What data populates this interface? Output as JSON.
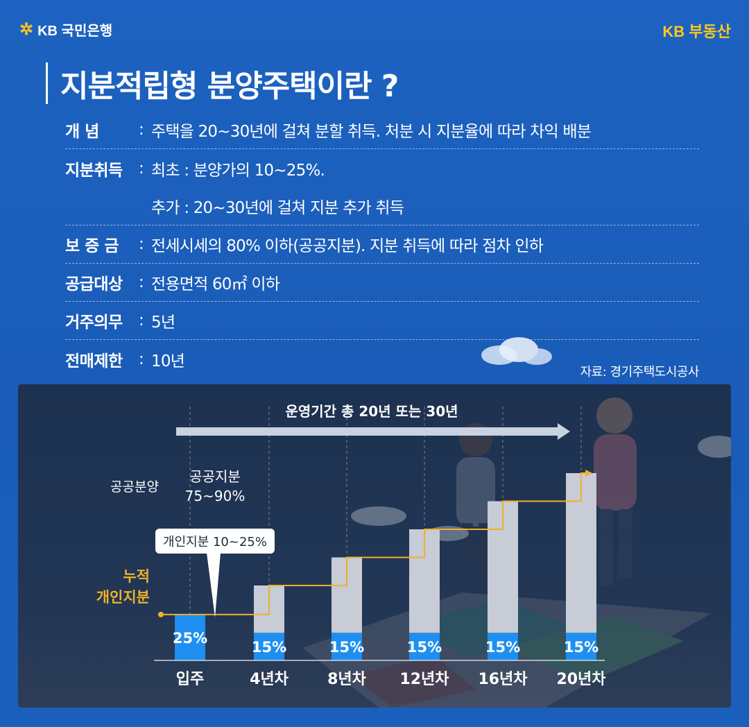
{
  "header": {
    "bank_logo": "KB 국민은행",
    "brand": "KB 부동산"
  },
  "title": "지분적립형 분양주택이란 ?",
  "info_rows": [
    {
      "label": "개      념",
      "value": "주택을 20~30년에 걸쳐 분할 취득. 처분 시 지분율에 따라 차익 배분"
    },
    {
      "label": "지분취득",
      "value": "최초 : 분양가의 10~25%."
    },
    {
      "label": "",
      "value": "추가 : 20~30년에 걸쳐 지분 추가 취득"
    },
    {
      "label": "보 증 금",
      "value": "전세시세의 80% 이하(공공지분). 지분 취득에 따라 점차 인하"
    },
    {
      "label": "공급대상",
      "value": "전용면적 60㎡ 이하"
    },
    {
      "label": "거주의무",
      "value": "5년"
    },
    {
      "label": "전매제한",
      "value": "10년"
    }
  ],
  "source": "자료: 경기주택도시공사",
  "chart_data": {
    "type": "bar",
    "period_label": "운영기간 총 20년 또는 30년",
    "public_sale_label": "공공분양",
    "public_share_label": [
      "공공지분",
      "75~90%"
    ],
    "personal_share_callout": "개인지분 10~25%",
    "cumulative_label": [
      "누적",
      "개인지분"
    ],
    "categories": [
      "입주",
      "4년차",
      "8년차",
      "12년차",
      "16년차",
      "20년차"
    ],
    "values": [
      25,
      15,
      15,
      15,
      15,
      15
    ],
    "value_labels": [
      "25%",
      "15%",
      "15%",
      "15%",
      "15%",
      "15%"
    ],
    "colors": {
      "personal": "#1e8ff0",
      "public": "#c7ccd6",
      "cumulative_line": "#f0b12a",
      "arrow": "#c9d2e2"
    }
  }
}
